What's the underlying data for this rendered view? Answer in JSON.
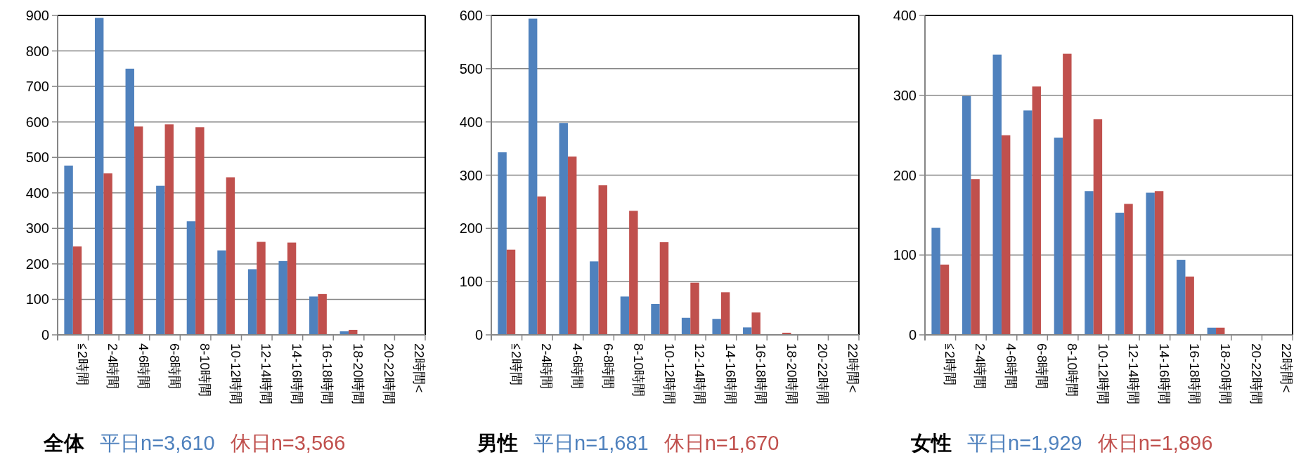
{
  "chart_data": [
    {
      "type": "bar",
      "title": "全体",
      "legend": "bottom",
      "grid": "y",
      "categories": [
        "≦2時間",
        "2-4時間",
        "4-6時間",
        "6-8時間",
        "8-10時間",
        "10-12時間",
        "12-14時間",
        "14-16時間",
        "16-18時間",
        "18-20時間",
        "20-22時間",
        "22時間<"
      ],
      "ylim": [
        0,
        900
      ],
      "yticks": [
        0,
        100,
        200,
        300,
        400,
        500,
        600,
        700,
        800,
        900
      ],
      "series": [
        {
          "name": "平日n=3,610",
          "color": "#4f81bd",
          "values": [
            477,
            893,
            750,
            420,
            320,
            238,
            185,
            208,
            108,
            10,
            0,
            0
          ]
        },
        {
          "name": "休日n=3,566",
          "color": "#c0504d",
          "values": [
            249,
            455,
            587,
            593,
            585,
            444,
            262,
            260,
            115,
            14,
            0,
            0
          ]
        }
      ]
    },
    {
      "type": "bar",
      "title": "男性",
      "legend": "bottom",
      "grid": "y",
      "categories": [
        "≦2時間",
        "2-4時間",
        "4-6時間",
        "6-8時間",
        "8-10時間",
        "10-12時間",
        "12-14時間",
        "14-16時間",
        "16-18時間",
        "18-20時間",
        "20-22時間",
        "22時間<"
      ],
      "ylim": [
        0,
        600
      ],
      "yticks": [
        0,
        100,
        200,
        300,
        400,
        500,
        600
      ],
      "series": [
        {
          "name": "平日n=1,681",
          "color": "#4f81bd",
          "values": [
            343,
            594,
            398,
            138,
            72,
            58,
            32,
            30,
            14,
            1,
            0,
            0
          ]
        },
        {
          "name": "休日n=1,670",
          "color": "#c0504d",
          "values": [
            160,
            260,
            335,
            281,
            233,
            174,
            98,
            80,
            42,
            4,
            0,
            0
          ]
        }
      ]
    },
    {
      "type": "bar",
      "title": "女性",
      "legend": "bottom",
      "grid": "y",
      "categories": [
        "≦2時間",
        "2-4時間",
        "4-6時間",
        "6-8時間",
        "8-10時間",
        "10-12時間",
        "12-14時間",
        "14-16時間",
        "16-18時間",
        "18-20時間",
        "20-22時間",
        "22時間<"
      ],
      "ylim": [
        0,
        400
      ],
      "yticks": [
        0,
        100,
        200,
        300,
        400
      ],
      "series": [
        {
          "name": "平日n=1,929",
          "color": "#4f81bd",
          "values": [
            134,
            299,
            351,
            281,
            247,
            180,
            153,
            178,
            94,
            9,
            0,
            0
          ]
        },
        {
          "name": "休日n=1,896",
          "color": "#c0504d",
          "values": [
            88,
            195,
            250,
            311,
            352,
            270,
            164,
            180,
            73,
            9,
            0,
            0
          ]
        }
      ]
    }
  ]
}
